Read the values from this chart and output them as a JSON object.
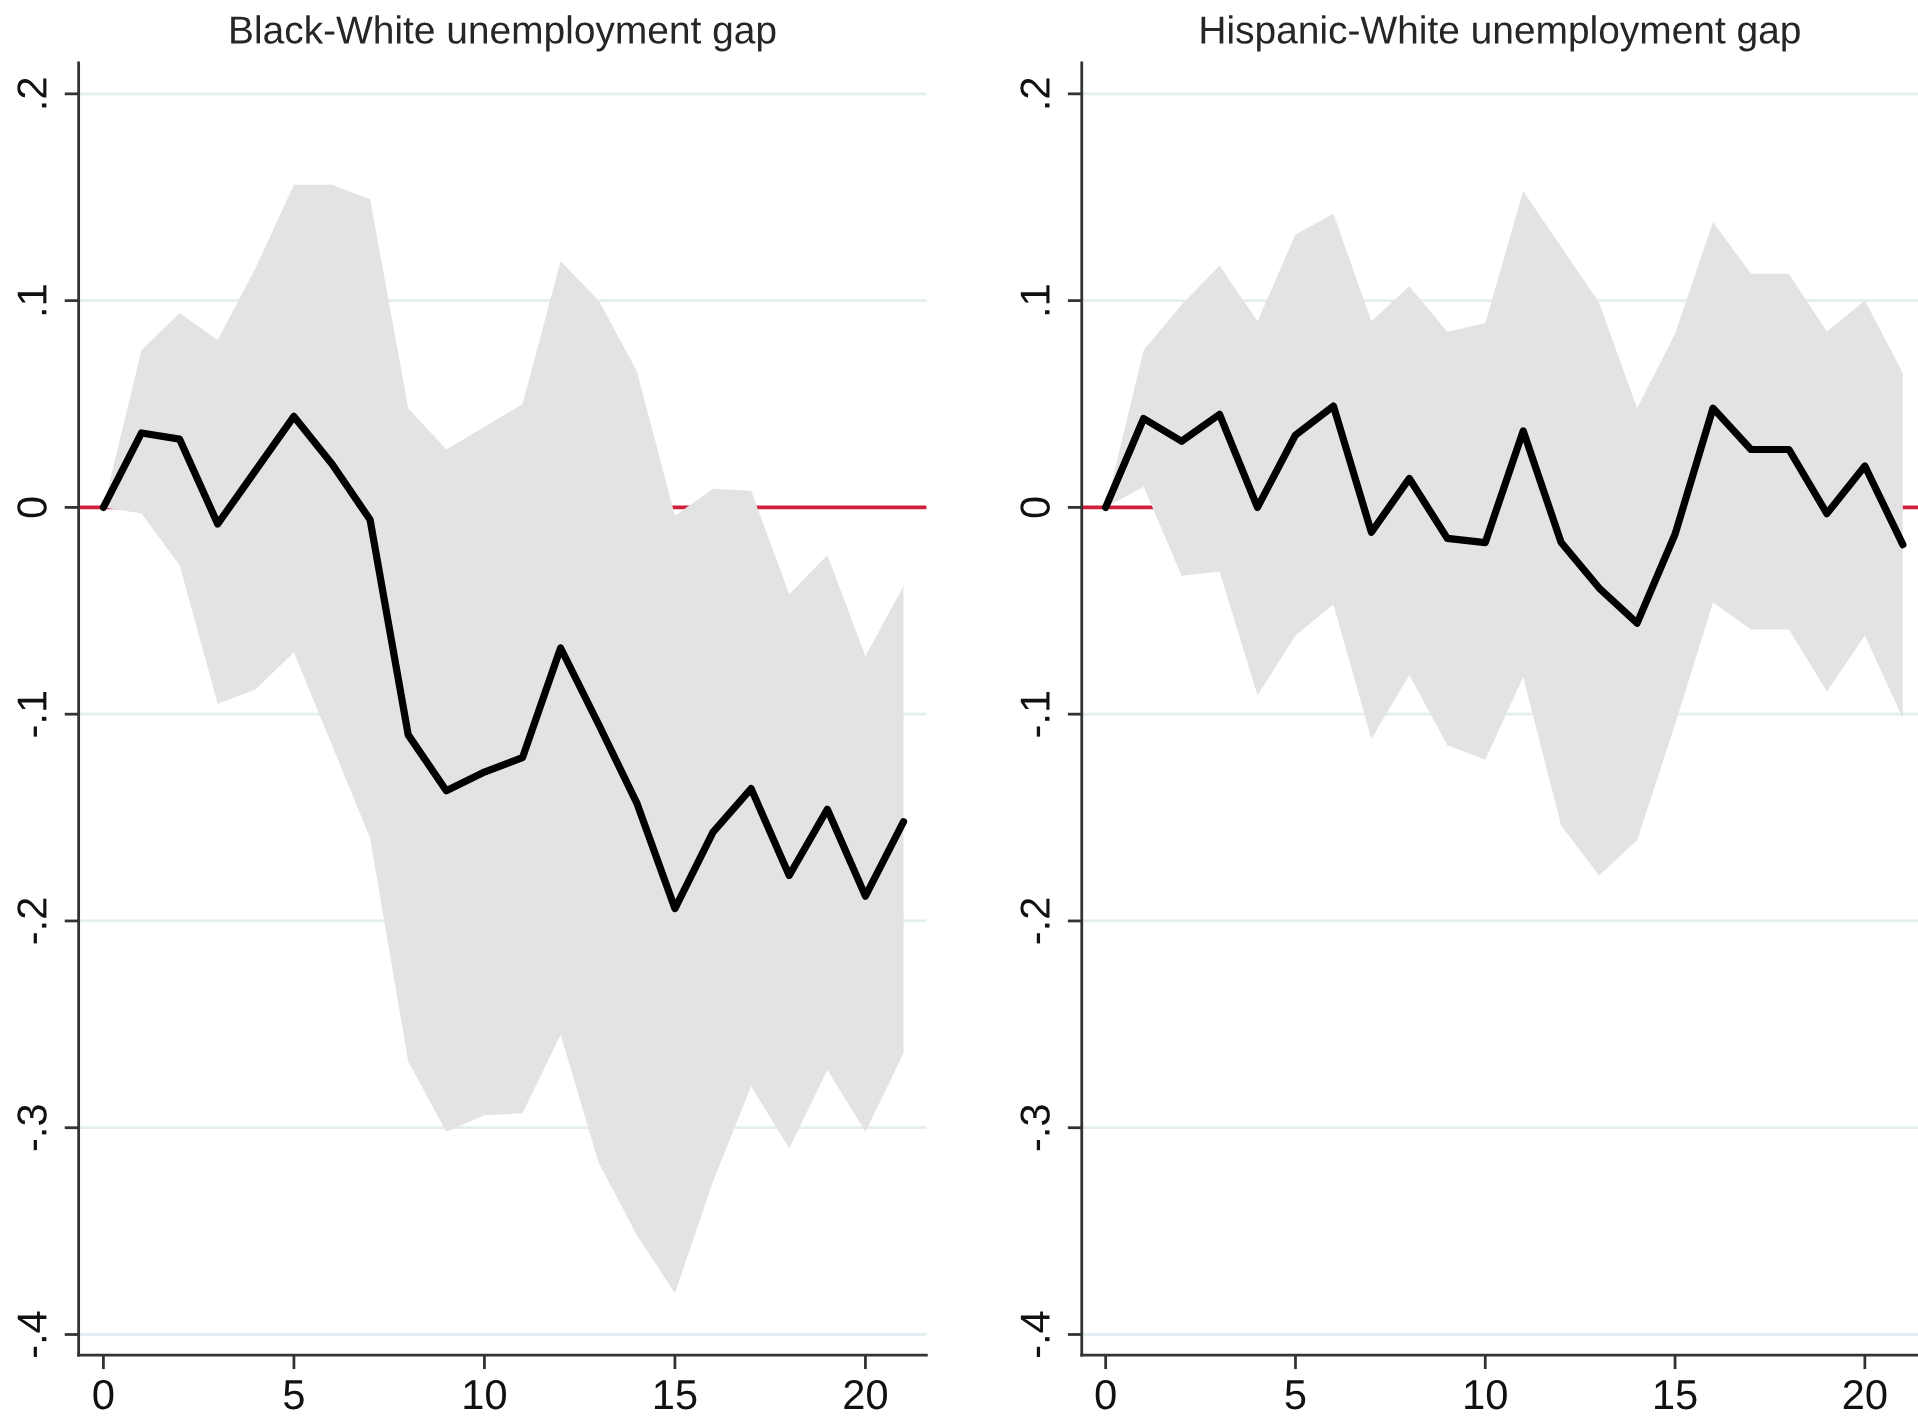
{
  "chart_data": [
    {
      "type": "line",
      "title": "Black-White unemployment gap",
      "x": [
        0,
        1,
        2,
        3,
        4,
        5,
        6,
        7,
        8,
        9,
        10,
        11,
        12,
        13,
        14,
        15,
        16,
        17,
        18,
        19,
        20,
        21
      ],
      "series": [
        {
          "color": "#000000",
          "values": [
            0,
            0.036,
            0.033,
            -0.008,
            0.018,
            0.044,
            0.021,
            -0.006,
            -0.11,
            -0.137,
            -0.128,
            -0.121,
            -0.068,
            -0.105,
            -0.143,
            -0.194,
            -0.157,
            -0.136,
            -0.178,
            -0.146,
            -0.188,
            -0.152
          ],
          "upper": [
            0,
            0.076,
            0.094,
            0.081,
            0.116,
            0.156,
            0.156,
            0.149,
            0.048,
            0.028,
            0.039,
            0.05,
            0.119,
            0.1,
            0.066,
            -0.004,
            0.009,
            0.008,
            -0.042,
            -0.023,
            -0.072,
            -0.038
          ],
          "lower": [
            0,
            -0.003,
            -0.028,
            -0.095,
            -0.088,
            -0.07,
            -0.115,
            -0.16,
            -0.268,
            -0.302,
            -0.294,
            -0.293,
            -0.255,
            -0.317,
            -0.352,
            -0.38,
            -0.326,
            -0.28,
            -0.31,
            -0.272,
            -0.302,
            -0.264
          ]
        }
      ],
      "ref_lines": [
        {
          "axis": "y",
          "value": 0,
          "color": "#d0203c"
        }
      ],
      "xlim": [
        -0.65,
        21.6
      ],
      "xticks": [
        0,
        5,
        10,
        15,
        20
      ],
      "ylim": [
        -0.41,
        0.215
      ],
      "yticks": [
        {
          "value": -0.4,
          "label": "-.4"
        },
        {
          "value": -0.3,
          "label": "-.3"
        },
        {
          "value": -0.2,
          "label": "-.2"
        },
        {
          "value": -0.1,
          "label": "-.1"
        },
        0,
        {
          "value": 0.1,
          "label": ".1"
        },
        {
          "value": 0.2,
          "label": ".2"
        }
      ],
      "grid": "y"
    },
    {
      "type": "line",
      "title": "Hispanic-White unemployment gap",
      "x": [
        0,
        1,
        2,
        3,
        4,
        5,
        6,
        7,
        8,
        9,
        10,
        11,
        12,
        13,
        14,
        15,
        16,
        17,
        18,
        19,
        20,
        21
      ],
      "series": [
        {
          "color": "#000000",
          "values": [
            0,
            0.043,
            0.032,
            0.045,
            0.0,
            0.035,
            0.049,
            -0.012,
            0.014,
            -0.015,
            -0.017,
            0.037,
            -0.017,
            -0.039,
            -0.056,
            -0.013,
            0.048,
            0.028,
            0.028,
            -0.003,
            0.02,
            -0.018
          ],
          "upper": [
            0,
            0.076,
            0.098,
            0.117,
            0.09,
            0.132,
            0.142,
            0.09,
            0.107,
            0.085,
            0.089,
            0.153,
            0.126,
            0.099,
            0.048,
            0.084,
            0.138,
            0.113,
            0.113,
            0.085,
            0.1,
            0.065
          ],
          "lower": [
            0,
            0.01,
            -0.033,
            -0.031,
            -0.091,
            -0.062,
            -0.047,
            -0.112,
            -0.081,
            -0.115,
            -0.122,
            -0.082,
            -0.154,
            -0.178,
            -0.161,
            -0.105,
            -0.046,
            -0.059,
            -0.059,
            -0.089,
            -0.062,
            -0.102
          ]
        }
      ],
      "ref_lines": [
        {
          "axis": "y",
          "value": 0,
          "color": "#d0203c"
        }
      ],
      "xlim": [
        -0.63,
        21.4
      ],
      "xticks": [
        0,
        5,
        10,
        15,
        20
      ],
      "ylim": [
        -0.41,
        0.215
      ],
      "yticks": [
        {
          "value": -0.4,
          "label": "-.4"
        },
        {
          "value": -0.3,
          "label": "-.3"
        },
        {
          "value": -0.2,
          "label": "-.2"
        },
        {
          "value": -0.1,
          "label": "-.1"
        },
        0,
        {
          "value": 0.1,
          "label": ".1"
        },
        {
          "value": 0.2,
          "label": ".2"
        }
      ],
      "grid": "y"
    }
  ]
}
